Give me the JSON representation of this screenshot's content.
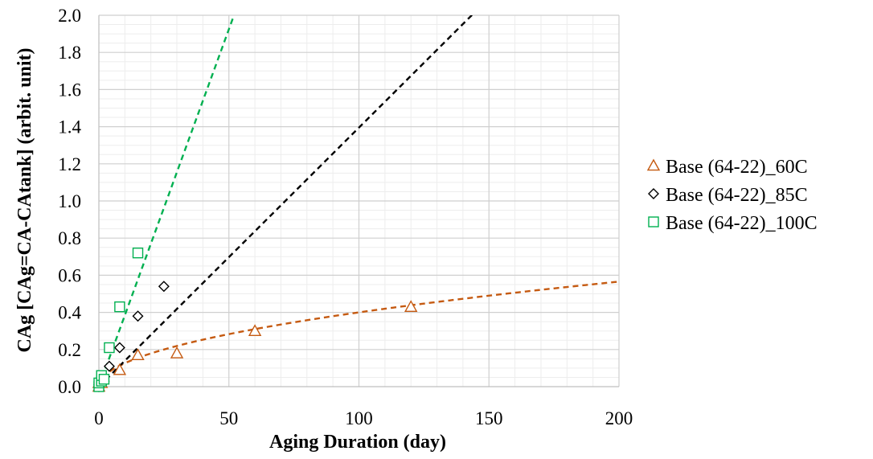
{
  "chart_data": {
    "type": "scatter",
    "xlabel": "Aging Duration (day)",
    "ylabel": "CAg [CAg=CA-CAtank] (arbit. unit)",
    "xlim": [
      0,
      200
    ],
    "ylim": [
      0,
      2.0
    ],
    "x_ticks": [
      "0",
      "50",
      "100",
      "150",
      "200"
    ],
    "y_ticks": [
      "0.0",
      "0.2",
      "0.4",
      "0.6",
      "0.8",
      "1.0",
      "1.2",
      "1.4",
      "1.6",
      "1.8",
      "2.0"
    ],
    "grid": true,
    "legend_position": "right",
    "series": [
      {
        "name": "Base (64-22)_60C",
        "marker": "triangle",
        "color": "#c55a11",
        "x": [
          0,
          0,
          1,
          8,
          15,
          30,
          60,
          120
        ],
        "y": [
          0.0,
          0.02,
          0.02,
          0.09,
          0.17,
          0.18,
          0.3,
          0.43
        ],
        "trendline": {
          "style": "dashed",
          "kind": "power",
          "a": 0.04,
          "b": 0.5
        }
      },
      {
        "name": "Base (64-22)_85C",
        "marker": "diamond",
        "color": "#000000",
        "x": [
          0,
          0,
          1,
          2,
          4,
          8,
          15,
          25
        ],
        "y": [
          0.0,
          0.01,
          0.02,
          0.03,
          0.11,
          0.21,
          0.38,
          0.54
        ],
        "trendline": {
          "style": "dashed",
          "kind": "linear",
          "slope": 0.01395,
          "intercept": 0.0
        }
      },
      {
        "name": "Base (64-22)_100C",
        "marker": "square",
        "color": "#00b050",
        "x": [
          0,
          0,
          1,
          1,
          2,
          4,
          8,
          15
        ],
        "y": [
          0.0,
          0.02,
          0.03,
          0.06,
          0.04,
          0.21,
          0.43,
          0.72
        ],
        "trendline": {
          "style": "dashed",
          "kind": "linear",
          "slope": 0.0385,
          "intercept": 0.0
        }
      }
    ]
  }
}
